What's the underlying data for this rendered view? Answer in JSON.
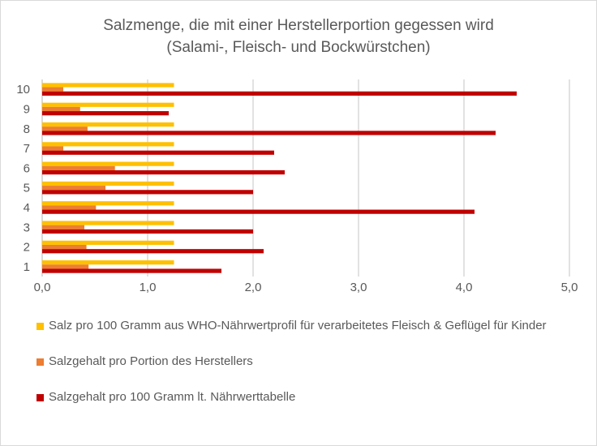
{
  "chart_data": {
    "type": "bar",
    "orientation": "horizontal",
    "title": "Salzmenge, die mit einer Herstellerportion gegessen wird",
    "subtitle": "(Salami-, Fleisch- und Bockwürstchen)",
    "categories": [
      "1",
      "2",
      "3",
      "4",
      "5",
      "6",
      "7",
      "8",
      "9",
      "10"
    ],
    "series": [
      {
        "name": "Salz pro 100 Gramm aus WHO-Nährwertprofil für verarbeitetes Fleisch & Geflügel für Kinder",
        "color": "#FFC000",
        "values": [
          1.25,
          1.25,
          1.25,
          1.25,
          1.25,
          1.25,
          1.25,
          1.25,
          1.25,
          1.25
        ]
      },
      {
        "name": "Salzgehalt pro Portion des Herstellers",
        "color": "#ED7D31",
        "values": [
          0.44,
          0.42,
          0.4,
          0.51,
          0.6,
          0.69,
          0.2,
          0.43,
          0.36,
          0.2
        ]
      },
      {
        "name": "Salzgehalt pro 100 Gramm lt. Nährwerttabelle",
        "color": "#C00000",
        "values": [
          1.7,
          2.1,
          2.0,
          4.1,
          2.0,
          2.3,
          2.2,
          4.3,
          1.2,
          4.5
        ]
      }
    ],
    "xlim": [
      0,
      5
    ],
    "xticks": [
      "0,0",
      "1,0",
      "2,0",
      "3,0",
      "4,0",
      "5,0"
    ],
    "grid": "vertical",
    "legend": "bottom"
  }
}
